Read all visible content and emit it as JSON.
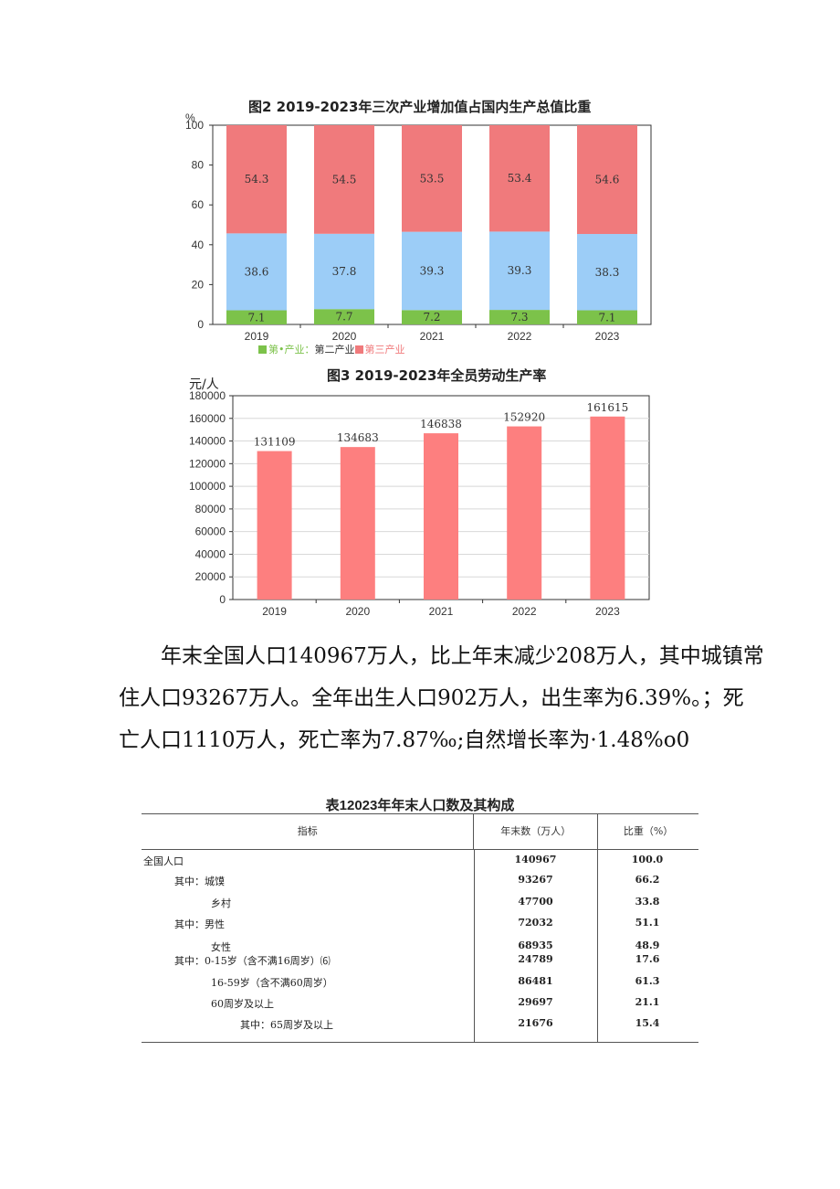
{
  "chart_data": [
    {
      "type": "bar",
      "stacked": true,
      "title": "图2 2019-2023年三次产业增加值占国内生产总值比重",
      "ylabel": "%",
      "ylim": [
        0,
        100
      ],
      "yticks": [
        "0",
        "20",
        "40",
        "60",
        "80",
        "100"
      ],
      "categories": [
        "2019",
        "2020",
        "2021",
        "2022",
        "2023"
      ],
      "series": [
        {
          "name": "第一产业",
          "color": "#7cc24a",
          "values": [
            7.1,
            7.7,
            7.2,
            7.3,
            7.1
          ],
          "labels": [
            "7.1",
            "7.7",
            "7.2",
            "7.3",
            "7.1"
          ]
        },
        {
          "name": "第二产业",
          "color": "#9ccdf7",
          "values": [
            38.6,
            37.8,
            39.3,
            39.3,
            38.3
          ],
          "labels": [
            "38.6",
            "37.8",
            "39.3",
            "39.3",
            "38.3"
          ]
        },
        {
          "name": "第三产业",
          "color": "#f07a7c",
          "values": [
            54.3,
            54.5,
            53.5,
            53.4,
            54.6
          ],
          "labels": [
            "54.3",
            "54.5",
            "53.5",
            "53.4",
            "54.6"
          ]
        }
      ],
      "legend_text": [
        "第•产业：",
        "第二产业",
        "第三产业"
      ],
      "grid": false,
      "legend_position": "bottom-left"
    },
    {
      "type": "bar",
      "title": "图3 2019-2023年全员劳动生产率",
      "ylabel": "元/人",
      "ylim": [
        0,
        180000
      ],
      "yticks": [
        "0",
        "20000",
        "40000",
        "60000",
        "80000",
        "100000",
        "120000",
        "140000",
        "160000",
        "180000"
      ],
      "categories": [
        "2019",
        "2020",
        "2021",
        "2022",
        "2023"
      ],
      "values": [
        131109,
        134683,
        146838,
        152920,
        161615
      ],
      "labels": [
        "131109",
        "134683",
        "146838",
        "152920",
        "161615"
      ],
      "color": "#fd7f7f",
      "grid": true
    }
  ],
  "paragraph": {
    "lines": [
      "年末全国人口140967万人，比上年末减少208万人，其中城镇常",
      "住人口93267万人。全年出生人口902万人，出生率为6.39%。；死",
      "亡人口1110万人，死亡率为7.87‰;自然增长率为·1.48%o0"
    ]
  },
  "table": {
    "title": "表12023年年末人口数及其构成",
    "headers": [
      "指标",
      "年末数（万人）",
      "比重（%）"
    ],
    "rows": [
      {
        "label": "全国人口",
        "value": "140967",
        "share": "100.0"
      },
      {
        "label": "其中：城馍",
        "value": "93267",
        "share": "66.2"
      },
      {
        "label": "乡村",
        "value": "47700",
        "share": "33.8"
      },
      {
        "label": "其中：男性",
        "value": "72032",
        "share": "51.1"
      },
      {
        "label": "女性",
        "value": "68935",
        "share": "48.9"
      },
      {
        "label": "其中：0-15岁（含不满16周岁）⑹",
        "value": "24789",
        "share": "17.6"
      },
      {
        "label": "16-59岁（含不满60周岁）",
        "value": "86481",
        "share": "61.3"
      },
      {
        "label": "60周岁及以上",
        "value": "29697",
        "share": "21.1"
      },
      {
        "label": "其中：65周岁及以上",
        "value": "21676",
        "share": "15.4"
      }
    ]
  }
}
